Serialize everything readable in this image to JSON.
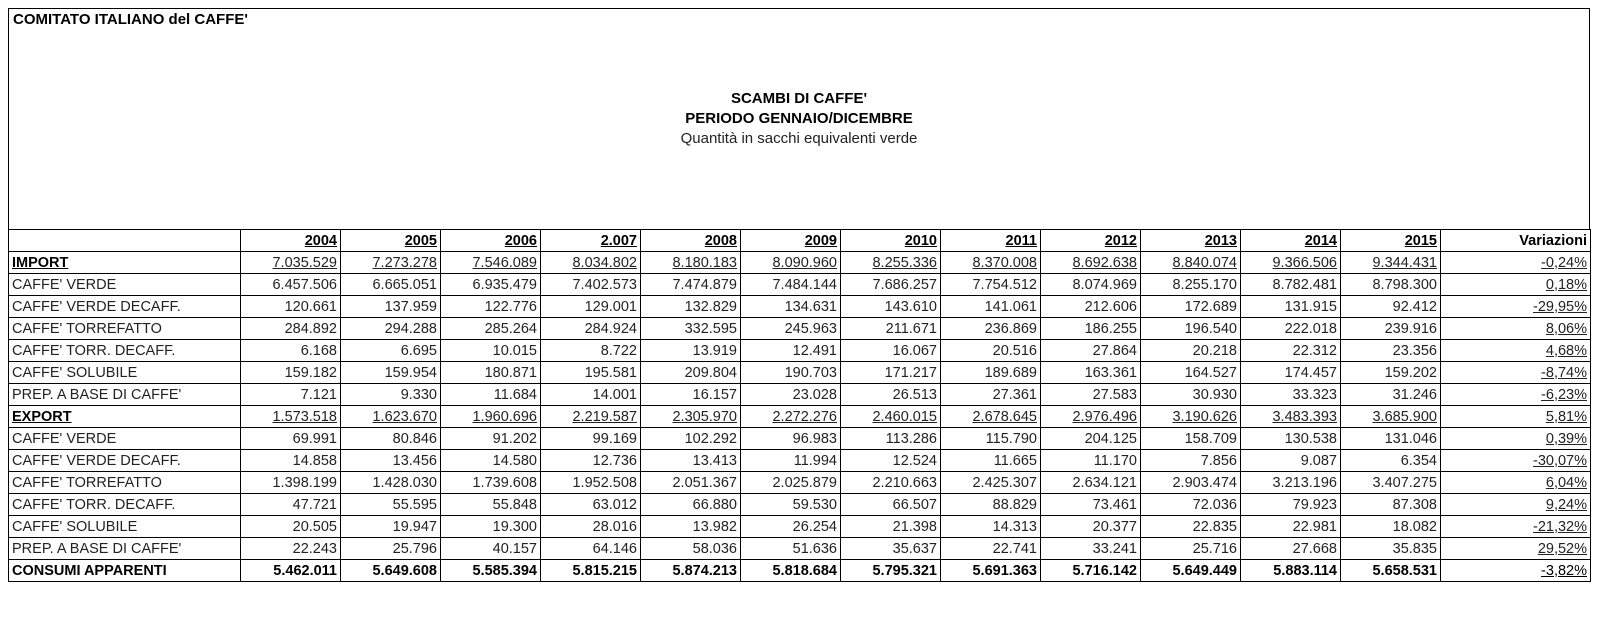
{
  "header": {
    "organization": "COMITATO ITALIANO del CAFFE'",
    "title": "SCAMBI DI CAFFE'",
    "subtitle": "PERIODO GENNAIO/DICEMBRE",
    "unit_note": "Quantità in sacchi equivalenti verde"
  },
  "table": {
    "columns": [
      "",
      "2004",
      "2005",
      "2006",
      "2.007",
      "2008",
      "2009",
      "2010",
      "2011",
      "2012",
      "2013",
      "2014",
      "2015",
      "Variazioni"
    ],
    "rows": [
      {
        "type": "group",
        "label": "IMPORT",
        "values": [
          "7.035.529",
          "7.273.278",
          "7.546.089",
          "8.034.802",
          "8.180.183",
          "8.090.960",
          "8.255.336",
          "8.370.008",
          "8.692.638",
          "8.840.074",
          "9.366.506",
          "9.344.431"
        ],
        "variation": "-0,24%"
      },
      {
        "type": "item",
        "label": "CAFFE' VERDE",
        "values": [
          "6.457.506",
          "6.665.051",
          "6.935.479",
          "7.402.573",
          "7.474.879",
          "7.484.144",
          "7.686.257",
          "7.754.512",
          "8.074.969",
          "8.255.170",
          "8.782.481",
          "8.798.300"
        ],
        "variation": "0,18%"
      },
      {
        "type": "item",
        "label": "CAFFE' VERDE DECAFF.",
        "values": [
          "120.661",
          "137.959",
          "122.776",
          "129.001",
          "132.829",
          "134.631",
          "143.610",
          "141.061",
          "212.606",
          "172.689",
          "131.915",
          "92.412"
        ],
        "variation": "-29,95%"
      },
      {
        "type": "item",
        "label": "CAFFE' TORREFATTO",
        "values": [
          "284.892",
          "294.288",
          "285.264",
          "284.924",
          "332.595",
          "245.963",
          "211.671",
          "236.869",
          "186.255",
          "196.540",
          "222.018",
          "239.916"
        ],
        "variation": "8,06%"
      },
      {
        "type": "item",
        "label": "CAFFE' TORR. DECAFF.",
        "values": [
          "6.168",
          "6.695",
          "10.015",
          "8.722",
          "13.919",
          "12.491",
          "16.067",
          "20.516",
          "27.864",
          "20.218",
          "22.312",
          "23.356"
        ],
        "variation": "4,68%"
      },
      {
        "type": "item",
        "label": "CAFFE' SOLUBILE",
        "values": [
          "159.182",
          "159.954",
          "180.871",
          "195.581",
          "209.804",
          "190.703",
          "171.217",
          "189.689",
          "163.361",
          "164.527",
          "174.457",
          "159.202"
        ],
        "variation": "-8,74%"
      },
      {
        "type": "item",
        "label": "PREP. A BASE DI CAFFE'",
        "values": [
          "7.121",
          "9.330",
          "11.684",
          "14.001",
          "16.157",
          "23.028",
          "26.513",
          "27.361",
          "27.583",
          "30.930",
          "33.323",
          "31.246"
        ],
        "variation": "-6,23%"
      },
      {
        "type": "group",
        "label": "EXPORT",
        "values": [
          "1.573.518",
          "1.623.670",
          "1.960.696",
          "2.219.587",
          "2.305.970",
          "2.272.276",
          "2.460.015",
          "2.678.645",
          "2.976.496",
          "3.190.626",
          "3.483.393",
          "3.685.900"
        ],
        "variation": "5,81%"
      },
      {
        "type": "item",
        "label": "CAFFE' VERDE",
        "values": [
          "69.991",
          "80.846",
          "91.202",
          "99.169",
          "102.292",
          "96.983",
          "113.286",
          "115.790",
          "204.125",
          "158.709",
          "130.538",
          "131.046"
        ],
        "variation": "0,39%"
      },
      {
        "type": "item",
        "label": "CAFFE' VERDE DECAFF.",
        "values": [
          "14.858",
          "13.456",
          "14.580",
          "12.736",
          "13.413",
          "11.994",
          "12.524",
          "11.665",
          "11.170",
          "7.856",
          "9.087",
          "6.354"
        ],
        "variation": "-30,07%"
      },
      {
        "type": "item",
        "label": "CAFFE' TORREFATTO",
        "values": [
          "1.398.199",
          "1.428.030",
          "1.739.608",
          "1.952.508",
          "2.051.367",
          "2.025.879",
          "2.210.663",
          "2.425.307",
          "2.634.121",
          "2.903.474",
          "3.213.196",
          "3.407.275"
        ],
        "variation": "6,04%"
      },
      {
        "type": "item",
        "label": "CAFFE' TORR. DECAFF.",
        "values": [
          "47.721",
          "55.595",
          "55.848",
          "63.012",
          "66.880",
          "59.530",
          "66.507",
          "88.829",
          "73.461",
          "72.036",
          "79.923",
          "87.308"
        ],
        "variation": "9,24%"
      },
      {
        "type": "item",
        "label": "CAFFE' SOLUBILE",
        "values": [
          "20.505",
          "19.947",
          "19.300",
          "28.016",
          "13.982",
          "26.254",
          "21.398",
          "14.313",
          "20.377",
          "22.835",
          "22.981",
          "18.082"
        ],
        "variation": "-21,32%"
      },
      {
        "type": "item",
        "label": "PREP. A BASE DI CAFFE'",
        "values": [
          "22.243",
          "25.796",
          "40.157",
          "64.146",
          "58.036",
          "51.636",
          "35.637",
          "22.741",
          "33.241",
          "25.716",
          "27.668",
          "35.835"
        ],
        "variation": "29,52%"
      },
      {
        "type": "total",
        "label": "CONSUMI APPARENTI",
        "values": [
          "5.462.011",
          "5.649.608",
          "5.585.394",
          "5.815.215",
          "5.874.213",
          "5.818.684",
          "5.795.321",
          "5.691.363",
          "5.716.142",
          "5.649.449",
          "5.883.114",
          "5.658.531"
        ],
        "variation": "-3,82%"
      }
    ]
  }
}
